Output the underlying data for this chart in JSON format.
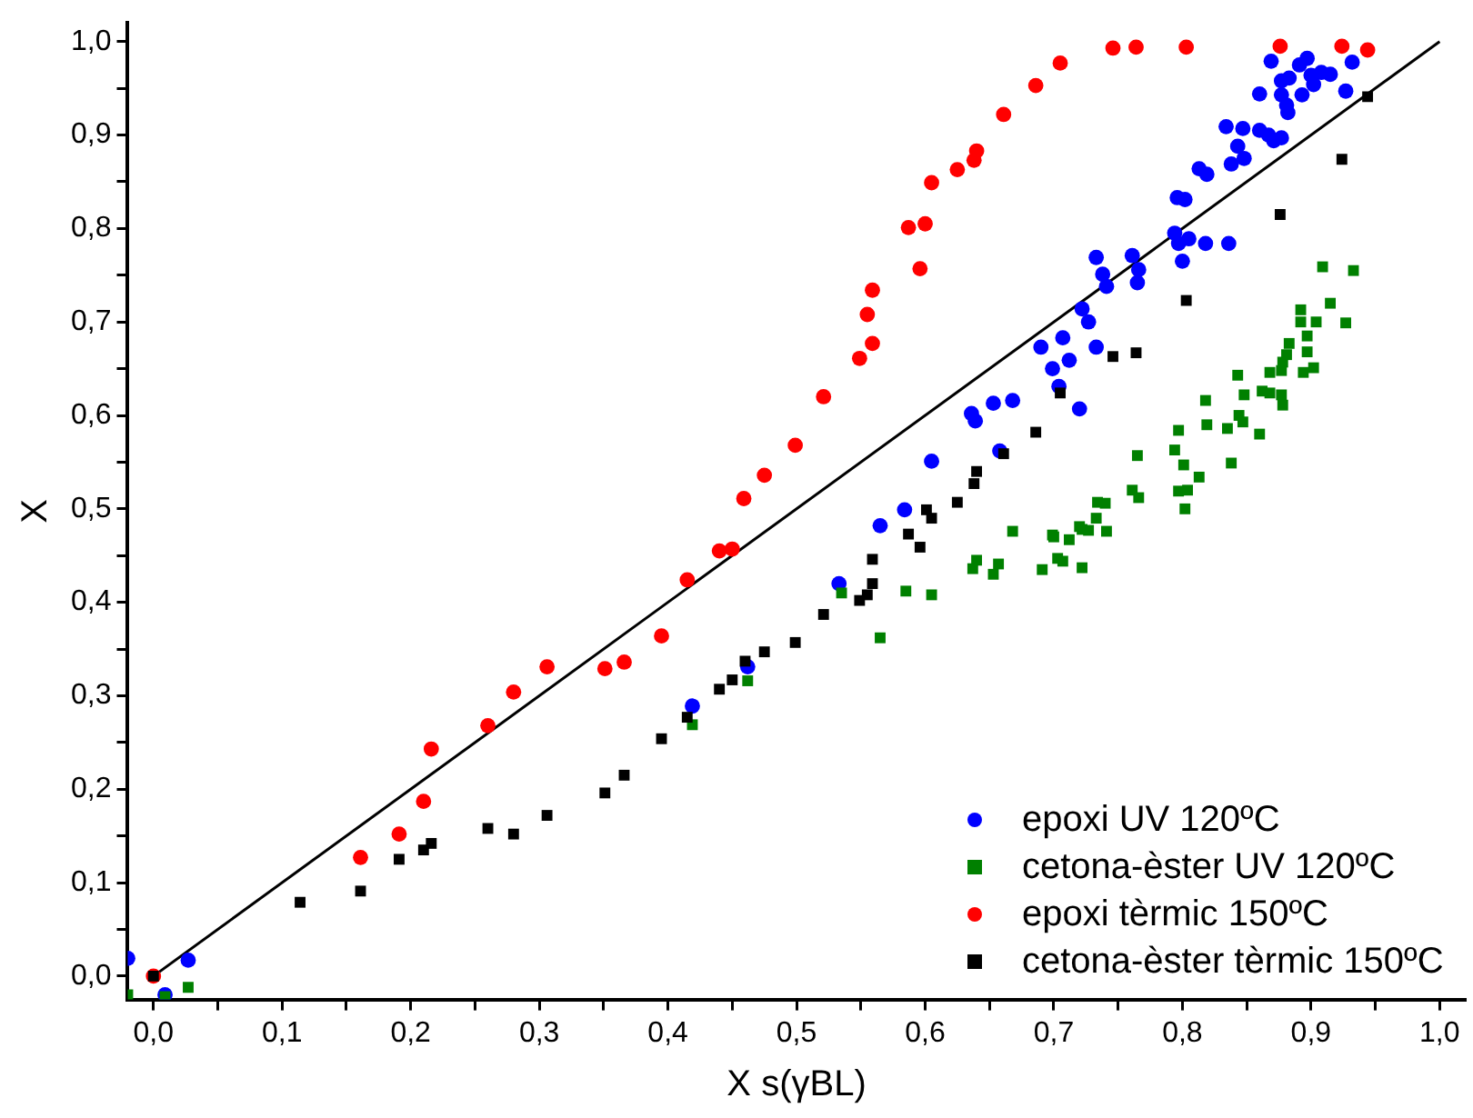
{
  "chart_data": {
    "type": "scatter",
    "xlabel": "X s(γBL)",
    "ylabel": "X",
    "xlim": [
      -0.02,
      1.02
    ],
    "ylim": [
      -0.025,
      1.02
    ],
    "xticks": [
      {
        "value": 0,
        "label": "0,0"
      },
      {
        "value": 0.05,
        "label": null
      },
      {
        "value": 0.1,
        "label": "0,1"
      },
      {
        "value": 0.15,
        "label": null
      },
      {
        "value": 0.2,
        "label": "0,2"
      },
      {
        "value": 0.25,
        "label": null
      },
      {
        "value": 0.3,
        "label": "0,3"
      },
      {
        "value": 0.35,
        "label": null
      },
      {
        "value": 0.4,
        "label": "0,4"
      },
      {
        "value": 0.45,
        "label": null
      },
      {
        "value": 0.5,
        "label": "0,5"
      },
      {
        "value": 0.55,
        "label": null
      },
      {
        "value": 0.6,
        "label": "0,6"
      },
      {
        "value": 0.65,
        "label": null
      },
      {
        "value": 0.7,
        "label": "0,7"
      },
      {
        "value": 0.75,
        "label": null
      },
      {
        "value": 0.8,
        "label": "0,8"
      },
      {
        "value": 0.85,
        "label": null
      },
      {
        "value": 0.9,
        "label": "0,9"
      },
      {
        "value": 0.95,
        "label": null
      },
      {
        "value": 1,
        "label": "1,0"
      }
    ],
    "yticks": [
      {
        "value": 0,
        "label": "0,0"
      },
      {
        "value": 0.05,
        "label": null
      },
      {
        "value": 0.1,
        "label": "0,1"
      },
      {
        "value": 0.15,
        "label": null
      },
      {
        "value": 0.2,
        "label": "0,2"
      },
      {
        "value": 0.25,
        "label": null
      },
      {
        "value": 0.3,
        "label": "0,3"
      },
      {
        "value": 0.35,
        "label": null
      },
      {
        "value": 0.4,
        "label": "0,4"
      },
      {
        "value": 0.45,
        "label": null
      },
      {
        "value": 0.5,
        "label": "0,5"
      },
      {
        "value": 0.55,
        "label": null
      },
      {
        "value": 0.6,
        "label": "0,6"
      },
      {
        "value": 0.65,
        "label": null
      },
      {
        "value": 0.7,
        "label": "0,7"
      },
      {
        "value": 0.75,
        "label": null
      },
      {
        "value": 0.8,
        "label": "0,8"
      },
      {
        "value": 0.85,
        "label": null
      },
      {
        "value": 0.9,
        "label": "0,9"
      },
      {
        "value": 0.95,
        "label": null
      },
      {
        "value": 1,
        "label": "1,0"
      }
    ],
    "grid": false,
    "legend": "bottom right",
    "series": [
      {
        "name": "epoxi UV 120ºC",
        "color": "#0000ff",
        "type": "scatter",
        "marker": "circle",
        "x": [
          -0.02,
          0.009,
          0.027,
          0.419,
          0.462,
          0.533,
          0.565,
          0.584,
          0.605,
          0.636,
          0.639,
          0.653,
          0.668,
          0.658,
          0.69,
          0.707,
          0.699,
          0.712,
          0.704,
          0.72,
          0.733,
          0.722,
          0.727,
          0.733,
          0.738,
          0.741,
          0.761,
          0.766,
          0.765,
          0.794,
          0.797,
          0.8,
          0.805,
          0.818,
          0.836,
          0.796,
          0.802,
          0.813,
          0.819,
          0.838,
          0.843,
          0.848,
          0.834,
          0.847,
          0.86,
          0.867,
          0.871,
          0.877,
          0.86,
          0.877,
          0.881,
          0.882,
          0.893,
          0.877,
          0.883,
          0.891,
          0.897,
          0.869,
          0.902,
          0.9,
          0.908,
          0.915,
          0.927,
          0.932
        ],
        "values": [
          0.019,
          -0.02,
          0.017,
          0.289,
          0.331,
          0.42,
          0.482,
          0.499,
          0.551,
          0.602,
          0.594,
          0.613,
          0.616,
          0.562,
          0.673,
          0.683,
          0.65,
          0.659,
          0.631,
          0.607,
          0.673,
          0.714,
          0.7,
          0.769,
          0.751,
          0.738,
          0.771,
          0.756,
          0.742,
          0.795,
          0.784,
          0.765,
          0.789,
          0.784,
          0.784,
          0.833,
          0.831,
          0.864,
          0.858,
          0.869,
          0.888,
          0.875,
          0.909,
          0.907,
          0.905,
          0.9,
          0.894,
          0.897,
          0.944,
          0.943,
          0.932,
          0.924,
          0.943,
          0.958,
          0.961,
          0.975,
          0.982,
          0.979,
          0.954,
          0.964,
          0.967,
          0.965,
          0.947,
          0.978
        ]
      },
      {
        "name": "cetona-èster UV 120ºC",
        "color": "#008000",
        "type": "scatter",
        "marker": "square",
        "x": [
          -0.02,
          0.009,
          0.027,
          0.419,
          0.462,
          0.535,
          0.565,
          0.585,
          0.605,
          0.637,
          0.64,
          0.653,
          0.657,
          0.668,
          0.691,
          0.699,
          0.703,
          0.707,
          0.712,
          0.722,
          0.722,
          0.741,
          0.7,
          0.72,
          0.727,
          0.733,
          0.734,
          0.74,
          0.761,
          0.766,
          0.765,
          0.794,
          0.801,
          0.797,
          0.804,
          0.802,
          0.813,
          0.797,
          0.818,
          0.819,
          0.838,
          0.835,
          0.844,
          0.847,
          0.843,
          0.848,
          0.86,
          0.862,
          0.868,
          0.877,
          0.878,
          0.868,
          0.877,
          0.878,
          0.881,
          0.883,
          0.892,
          0.892,
          0.897,
          0.897,
          0.894,
          0.902,
          0.904,
          0.915,
          0.909,
          0.927,
          0.933
        ],
        "values": [
          -0.02,
          -0.022,
          -0.012,
          0.269,
          0.316,
          0.41,
          0.362,
          0.412,
          0.408,
          0.436,
          0.445,
          0.43,
          0.441,
          0.476,
          0.435,
          0.472,
          0.447,
          0.444,
          0.467,
          0.437,
          0.478,
          0.476,
          0.47,
          0.481,
          0.477,
          0.49,
          0.507,
          0.506,
          0.52,
          0.512,
          0.557,
          0.563,
          0.547,
          0.519,
          0.52,
          0.5,
          0.534,
          0.584,
          0.616,
          0.59,
          0.549,
          0.586,
          0.6,
          0.593,
          0.643,
          0.622,
          0.58,
          0.626,
          0.624,
          0.622,
          0.611,
          0.646,
          0.648,
          0.657,
          0.665,
          0.677,
          0.7,
          0.713,
          0.685,
          0.668,
          0.646,
          0.651,
          0.7,
          0.72,
          0.759,
          0.699,
          0.755
        ]
      },
      {
        "name": "epoxi tèrmic 150ºC",
        "color": "#ff0000",
        "type": "scatter",
        "marker": "circle",
        "x": [
          0,
          0.114,
          0.161,
          0.191,
          0.21,
          0.216,
          0.26,
          0.28,
          0.306,
          0.351,
          0.366,
          0.395,
          0.415,
          0.44,
          0.45,
          0.459,
          0.475,
          0.499,
          0.521,
          0.549,
          0.559,
          0.555,
          0.559,
          0.596,
          0.587,
          0.6,
          0.605,
          0.625,
          0.638,
          0.64,
          0.661,
          0.686,
          0.705,
          0.746,
          0.764,
          0.803,
          0.876,
          0.924,
          0.944
        ],
        "values": [
          0,
          null,
          0.127,
          0.152,
          0.187,
          0.243,
          0.268,
          0.304,
          0.331,
          0.329,
          0.336,
          0.364,
          0.424,
          0.455,
          0.457,
          0.511,
          0.536,
          0.568,
          0.62,
          0.661,
          0.677,
          0.708,
          0.734,
          0.757,
          0.801,
          0.805,
          0.849,
          0.863,
          0.873,
          0.883,
          0.922,
          0.953,
          0.977,
          0.993,
          0.994,
          0.994,
          0.995,
          0.995,
          0.991
        ]
      },
      {
        "name": "cetona-èster tèrmic 150ºC",
        "color": "#000000",
        "type": "scatter",
        "marker": "square",
        "x": [
          0,
          0.114,
          0.161,
          0.191,
          0.21,
          0.216,
          0.26,
          0.28,
          0.306,
          0.351,
          0.366,
          0.395,
          0.415,
          0.44,
          0.45,
          0.46,
          0.475,
          0.499,
          0.521,
          0.549,
          0.555,
          0.559,
          0.559,
          0.587,
          0.596,
          0.601,
          0.605,
          0.625,
          0.638,
          0.64,
          0.661,
          0.686,
          0.705,
          0.746,
          0.764,
          0.803,
          0.876,
          0.924,
          0.944
        ],
        "values": [
          0,
          0.079,
          0.091,
          0.125,
          0.135,
          0.142,
          0.158,
          0.152,
          0.172,
          0.196,
          0.215,
          0.254,
          0.277,
          0.307,
          0.317,
          0.337,
          0.347,
          0.357,
          0.387,
          0.402,
          0.408,
          0.42,
          0.446,
          0.473,
          0.459,
          0.499,
          0.49,
          0.507,
          0.527,
          0.54,
          0.559,
          0.582,
          0.624,
          0.663,
          0.667,
          0.723,
          0.815,
          0.874,
          0.941
        ]
      },
      {
        "color": "#000000",
        "type": "line",
        "marker": "none",
        "x": [
          0,
          1
        ],
        "values": [
          0,
          1
        ]
      }
    ]
  }
}
